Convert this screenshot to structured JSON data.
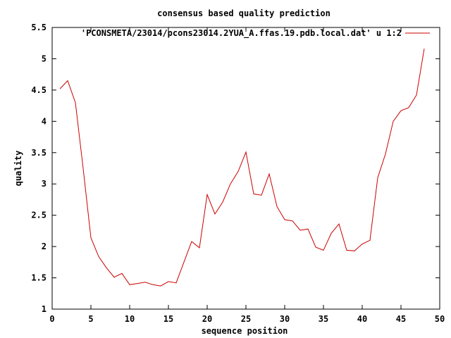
{
  "chart_data": {
    "type": "line",
    "title": "consensus based quality prediction",
    "xlabel": "sequence position",
    "ylabel": "quality",
    "xlim": [
      0,
      50
    ],
    "ylim": [
      1,
      5.5
    ],
    "x_ticks": [
      0,
      5,
      10,
      15,
      20,
      25,
      30,
      35,
      40,
      45,
      50
    ],
    "y_ticks": [
      1,
      1.5,
      2,
      2.5,
      3,
      3.5,
      4,
      4.5,
      5,
      5.5
    ],
    "grid": false,
    "legend_position": "top-right",
    "series": [
      {
        "name": "'PCONSMETA/23014/pcons23014.2YUA_A.ffas.19.pdb.local.dat' u 1:2",
        "color": "#cc0000",
        "x": [
          1,
          2,
          3,
          4,
          5,
          6,
          7,
          8,
          9,
          10,
          11,
          12,
          13,
          14,
          15,
          16,
          17,
          18,
          19,
          20,
          21,
          22,
          23,
          24,
          25,
          26,
          27,
          28,
          29,
          30,
          31,
          32,
          33,
          34,
          35,
          36,
          37,
          38,
          39,
          40,
          41,
          42,
          43,
          44,
          45,
          46,
          47,
          48
        ],
        "y": [
          4.52,
          4.65,
          4.3,
          3.25,
          2.14,
          1.84,
          1.66,
          1.51,
          1.57,
          1.39,
          1.41,
          1.43,
          1.39,
          1.37,
          1.44,
          1.42,
          1.75,
          2.08,
          1.98,
          2.83,
          2.52,
          2.71,
          3.0,
          3.2,
          3.51,
          2.84,
          2.82,
          3.16,
          2.64,
          2.43,
          2.41,
          2.26,
          2.28,
          1.99,
          1.94,
          2.21,
          2.36,
          1.94,
          1.93,
          2.04,
          2.1,
          3.1,
          3.48,
          4.0,
          4.17,
          4.22,
          4.42,
          5.16
        ]
      }
    ]
  }
}
